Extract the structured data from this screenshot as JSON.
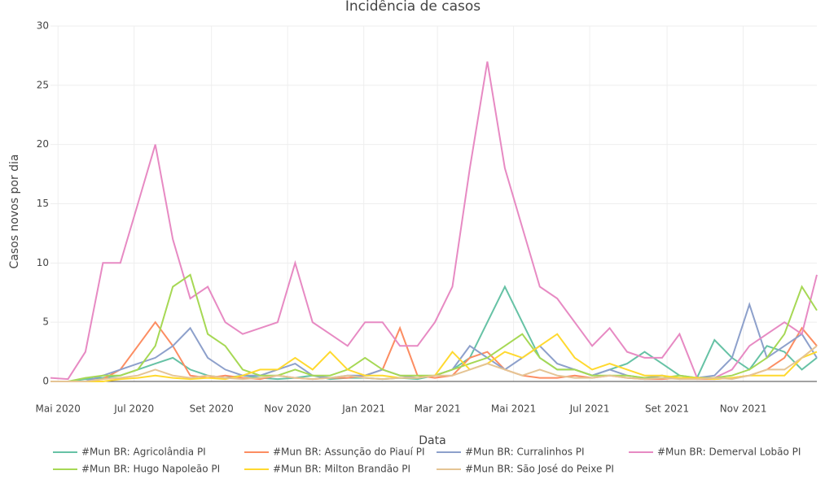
{
  "chart_data": {
    "type": "line",
    "title": "Incidência de casos",
    "x_label": "Data",
    "y_label": "Casos novos por dia",
    "x": [
      "2020-04-25",
      "2020-05-09",
      "2020-05-23",
      "2020-06-06",
      "2020-06-20",
      "2020-07-04",
      "2020-07-18",
      "2020-08-01",
      "2020-08-15",
      "2020-08-29",
      "2020-09-12",
      "2020-09-26",
      "2020-10-10",
      "2020-10-24",
      "2020-11-07",
      "2020-11-21",
      "2020-12-05",
      "2020-12-19",
      "2021-01-02",
      "2021-01-16",
      "2021-01-30",
      "2021-02-13",
      "2021-02-27",
      "2021-03-13",
      "2021-03-27",
      "2021-04-10",
      "2021-04-24",
      "2021-05-08",
      "2021-05-22",
      "2021-06-05",
      "2021-06-19",
      "2021-07-03",
      "2021-07-17",
      "2021-07-31",
      "2021-08-14",
      "2021-08-28",
      "2021-09-11",
      "2021-09-25",
      "2021-10-09",
      "2021-10-23",
      "2021-11-06",
      "2021-11-20",
      "2021-12-04",
      "2021-12-18",
      "2021-12-30"
    ],
    "xlim": [
      "2020-04-25",
      "2021-12-30"
    ],
    "xticks": [
      {
        "value": "2020-05-01",
        "label": "Mai 2020"
      },
      {
        "value": "2020-07-01",
        "label": "Jul 2020"
      },
      {
        "value": "2020-09-01",
        "label": "Set 2020"
      },
      {
        "value": "2020-11-01",
        "label": "Nov 2020"
      },
      {
        "value": "2021-01-01",
        "label": "Jan 2021"
      },
      {
        "value": "2021-03-01",
        "label": "Mar 2021"
      },
      {
        "value": "2021-05-01",
        "label": "Mai 2021"
      },
      {
        "value": "2021-07-01",
        "label": "Jul 2021"
      },
      {
        "value": "2021-09-01",
        "label": "Set 2021"
      },
      {
        "value": "2021-11-01",
        "label": "Nov 2021"
      }
    ],
    "ylim": [
      0,
      30
    ],
    "yticks": [
      0,
      5,
      10,
      15,
      20,
      25,
      30
    ],
    "grid": true,
    "series": [
      {
        "name": "#Mun BR: Agricolândia PI",
        "color": "#66c2a5",
        "values": [
          0,
          0,
          0.2,
          0.3,
          0.5,
          1,
          1.5,
          2,
          1,
          0.5,
          0.3,
          0.5,
          0.3,
          0.2,
          0.3,
          0.5,
          0.2,
          0.3,
          0.3,
          0.2,
          0.3,
          0.2,
          0.5,
          1,
          2,
          5,
          8,
          5,
          2,
          1,
          1,
          0.5,
          1,
          1.5,
          2.5,
          1.5,
          0.5,
          0.3,
          3.5,
          2,
          1,
          3,
          2.5,
          1,
          2
        ]
      },
      {
        "name": "#Mun BR: Assunção do Piauí PI",
        "color": "#fc8d62",
        "values": [
          0,
          0,
          0,
          0.2,
          1,
          3,
          5,
          3,
          0.5,
          0.3,
          0.5,
          0.3,
          0.2,
          0.5,
          0.3,
          0.2,
          0.3,
          0.3,
          0.5,
          1,
          4.5,
          0.5,
          0.3,
          0.5,
          2,
          2.5,
          1,
          0.5,
          0.3,
          0.3,
          0.5,
          0.3,
          0.5,
          0.3,
          0.2,
          0.2,
          0.3,
          0.2,
          0.2,
          0.3,
          0.5,
          1,
          2,
          4.5,
          3
        ]
      },
      {
        "name": "#Mun BR: Curralinhos PI",
        "color": "#8da0cb",
        "values": [
          0,
          0,
          0,
          0.5,
          1,
          1.5,
          2,
          3,
          4.5,
          2,
          1,
          0.5,
          0.5,
          1,
          1.5,
          0.5,
          0.3,
          0.5,
          0.5,
          1,
          0.5,
          0.3,
          0.5,
          1,
          3,
          2,
          1,
          2,
          3,
          1.5,
          1,
          0.5,
          1,
          0.5,
          0.3,
          0.5,
          0.2,
          0.3,
          0.5,
          2,
          6.5,
          2,
          3,
          4,
          2
        ]
      },
      {
        "name": "#Mun BR: Demerval Lobão PI",
        "color": "#e78ac3",
        "values": [
          0.3,
          0.2,
          2.5,
          10,
          10,
          15,
          20,
          12,
          7,
          8,
          5,
          4,
          4.5,
          5,
          10,
          5,
          4,
          3,
          5,
          5,
          3,
          3,
          5,
          8,
          18,
          27,
          18,
          13,
          8,
          7,
          5,
          3,
          4.5,
          2.5,
          2,
          2,
          4,
          0.3,
          0.3,
          1,
          3,
          4,
          5,
          4,
          9
        ]
      },
      {
        "name": "#Mun BR: Hugo Napoleão PI",
        "color": "#a6d854",
        "values": [
          0,
          0,
          0.3,
          0.5,
          0.5,
          1,
          3,
          8,
          9,
          4,
          3,
          1,
          0.5,
          0.5,
          1,
          0.5,
          0.5,
          1,
          2,
          1,
          0.5,
          0.5,
          0.5,
          1,
          1.5,
          2,
          3,
          4,
          2,
          1,
          1,
          0.5,
          0.5,
          0.5,
          0.3,
          0.3,
          0.5,
          0.3,
          0.3,
          0.5,
          1,
          2,
          4,
          8,
          6
        ]
      },
      {
        "name": "#Mun BR: Milton Brandão PI",
        "color": "#ffd92f",
        "values": [
          0,
          0,
          0,
          0,
          0.2,
          0.3,
          0.5,
          0.3,
          0.2,
          0.3,
          0.2,
          0.5,
          1,
          1,
          2,
          1,
          2.5,
          1,
          0.5,
          0.5,
          0.3,
          0.3,
          0.5,
          2.5,
          1,
          1.5,
          2.5,
          2,
          3,
          4,
          2,
          1,
          1.5,
          1,
          0.5,
          0.5,
          0.3,
          0.3,
          0.2,
          0.3,
          0.5,
          0.5,
          0.5,
          2,
          2.5
        ]
      },
      {
        "name": "#Mun BR: São José do Peixe PI",
        "color": "#e5c494",
        "values": [
          0,
          0,
          0,
          0.2,
          0.3,
          0.5,
          1,
          0.5,
          0.3,
          0.5,
          0.3,
          0.2,
          0.3,
          0.5,
          0.3,
          0.2,
          0.3,
          0.5,
          0.3,
          0.2,
          0.3,
          0.3,
          0.5,
          0.5,
          1,
          1.5,
          1,
          0.5,
          1,
          0.5,
          0.3,
          0.3,
          0.5,
          0.3,
          0.2,
          0.3,
          0.2,
          0.2,
          0.3,
          0.2,
          0.5,
          1,
          1,
          2,
          3
        ]
      }
    ]
  }
}
